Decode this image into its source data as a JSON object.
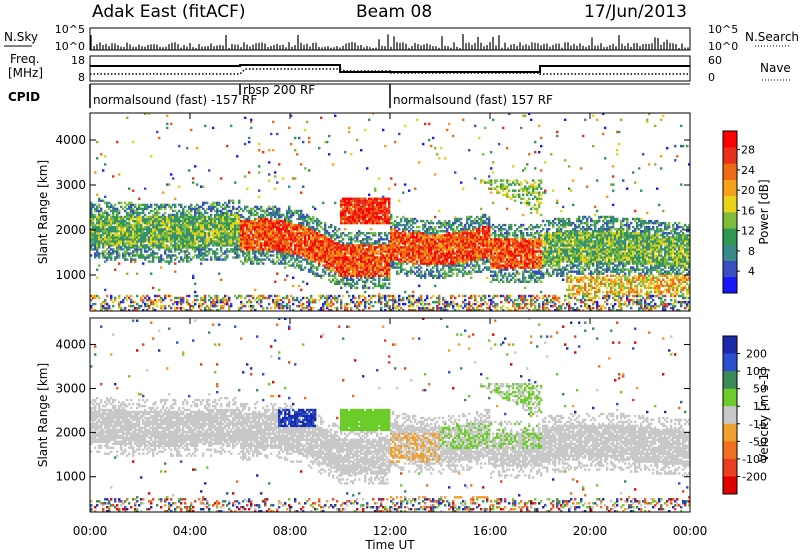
{
  "header": {
    "station": "Adak East (fitACF)",
    "beam": "Beam 08",
    "date": "17/Jun/2013"
  },
  "panels": {
    "nsky": {
      "label": "N.Sky",
      "left_ticks": [
        "10^5",
        "10^0"
      ],
      "right_ticks": [
        "10^5",
        "10^0"
      ],
      "right_label": "N.Search"
    },
    "freq": {
      "label_line1": "Freq.",
      "label_line2": "[MHz]",
      "left_ticks": [
        "18",
        "8"
      ],
      "right_ticks": [
        "60",
        "0"
      ],
      "right_label": "Nave"
    },
    "cpid": {
      "label": "CPID",
      "segments": [
        "normalsound (fast) -157 RF",
        "rbsp 200 RF",
        "normalsound (fast) 157 RF"
      ]
    }
  },
  "chart_data": [
    {
      "type": "heatmap",
      "name": "power",
      "ylabel": "Slant Range [km]",
      "y_ticks": [
        1000,
        2000,
        3000,
        4000
      ],
      "ylim": [
        200,
        4600
      ],
      "x_ticks": [
        "00:00",
        "04:00",
        "08:00",
        "12:00",
        "16:00",
        "20:00",
        "00:00"
      ],
      "xlim_hours": [
        0,
        24
      ],
      "colorbar": {
        "label": "Power [dB]",
        "ticks": [
          "4",
          "8",
          "12",
          "16",
          "20",
          "24",
          "28"
        ],
        "colors": [
          "#1818ff",
          "#3a4fbf",
          "#3a8a8a",
          "#2f9a4f",
          "#7dbd3a",
          "#e8d21a",
          "#f5a21a",
          "#f06a14",
          "#e8301a",
          "#ff0000"
        ]
      },
      "bands": [
        {
          "hours": [
            0,
            6
          ],
          "center_km": 2000,
          "note": "blue/green echoes"
        },
        {
          "hours": [
            6,
            10
          ],
          "center_km": 1750,
          "note": "orange/red echoes"
        },
        {
          "hours": [
            10,
            12
          ],
          "center_km": 2350,
          "note": "strong red block"
        },
        {
          "hours": [
            10,
            12
          ],
          "center_km": 1250,
          "note": "red band"
        },
        {
          "hours": [
            12,
            18
          ],
          "center_km": 1600,
          "note": "orange/red echoes"
        },
        {
          "hours": [
            18,
            24
          ],
          "center_km": 1600,
          "note": "green/orange echoes"
        }
      ]
    },
    {
      "type": "heatmap",
      "name": "velocity",
      "ylabel": "Slant Range [km]",
      "y_ticks": [
        1000,
        2000,
        3000,
        4000
      ],
      "ylim": [
        200,
        4600
      ],
      "x_ticks": [
        "00:00",
        "04:00",
        "08:00",
        "12:00",
        "16:00",
        "20:00",
        "00:00"
      ],
      "xlim_hours": [
        0,
        24
      ],
      "xlabel": "Time UT",
      "colorbar": {
        "label": "Velocity [m s-1]",
        "ticks": [
          "200",
          "100",
          "50",
          "15",
          "-15",
          "-50",
          "-100",
          "-200"
        ],
        "colors": [
          "#1a2aa8",
          "#2a4fd0",
          "#3a8a5a",
          "#6ccc2a",
          "#c8c8c8",
          "#f0a030",
          "#f07020",
          "#e84020",
          "#e00000"
        ]
      }
    }
  ]
}
